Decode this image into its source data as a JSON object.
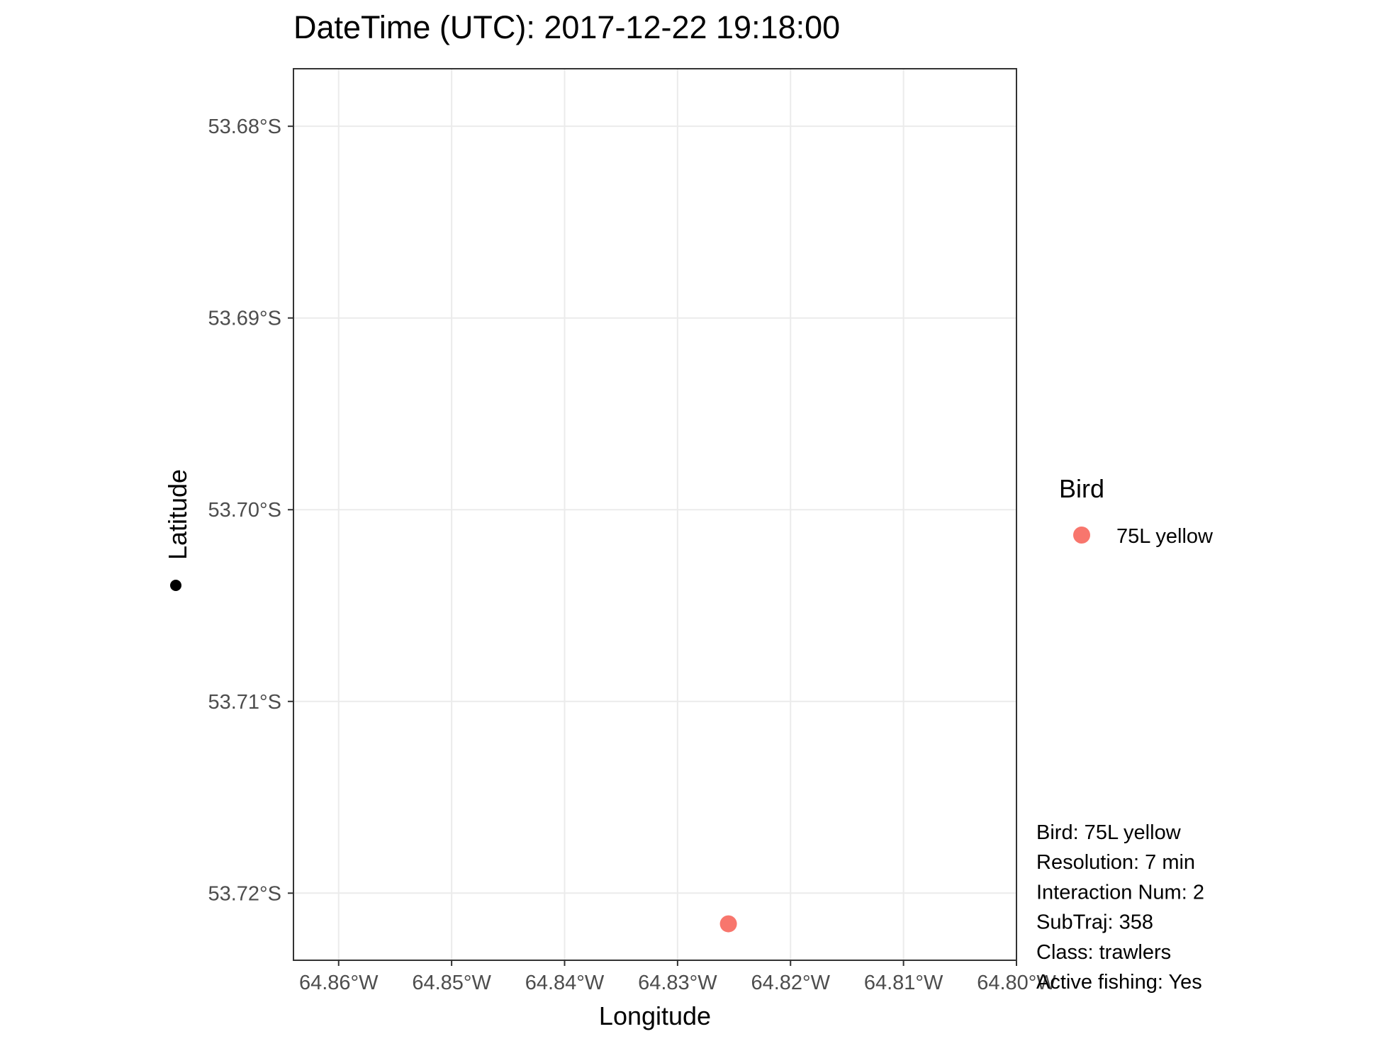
{
  "chart_data": {
    "type": "scatter",
    "title": "DateTime (UTC): 2017-12-22 19:18:00",
    "xlabel": "Longitude",
    "ylabel": "Latitude",
    "xlim": [
      -64.864,
      -64.8
    ],
    "ylim": [
      -53.7235,
      -53.677
    ],
    "x_ticks": [
      -64.86,
      -64.85,
      -64.84,
      -64.83,
      -64.82,
      -64.81,
      -64.8
    ],
    "x_tick_labels": [
      "64.86°W",
      "64.85°W",
      "64.84°W",
      "64.83°W",
      "64.82°W",
      "64.81°W",
      "64.80°W"
    ],
    "y_ticks": [
      -53.68,
      -53.69,
      -53.7,
      -53.71,
      -53.72
    ],
    "y_tick_labels": [
      "53.68°S",
      "53.69°S",
      "53.70°S",
      "53.71°S",
      "53.72°S"
    ],
    "grid": true,
    "legend": {
      "title": "Bird",
      "position": "right",
      "entries": [
        {
          "label": "75L yellow",
          "color": "#F8766D"
        }
      ]
    },
    "series": [
      {
        "name": "75L yellow",
        "color": "#F8766D",
        "points": [
          {
            "x": -64.8255,
            "y": -53.7216
          }
        ]
      }
    ],
    "annotations": [
      "Bird: 75L yellow",
      "Resolution: 7 min",
      "Interaction Num: 2",
      "SubTraj: 358",
      "Class: trawlers",
      "Active fishing: Yes"
    ]
  }
}
